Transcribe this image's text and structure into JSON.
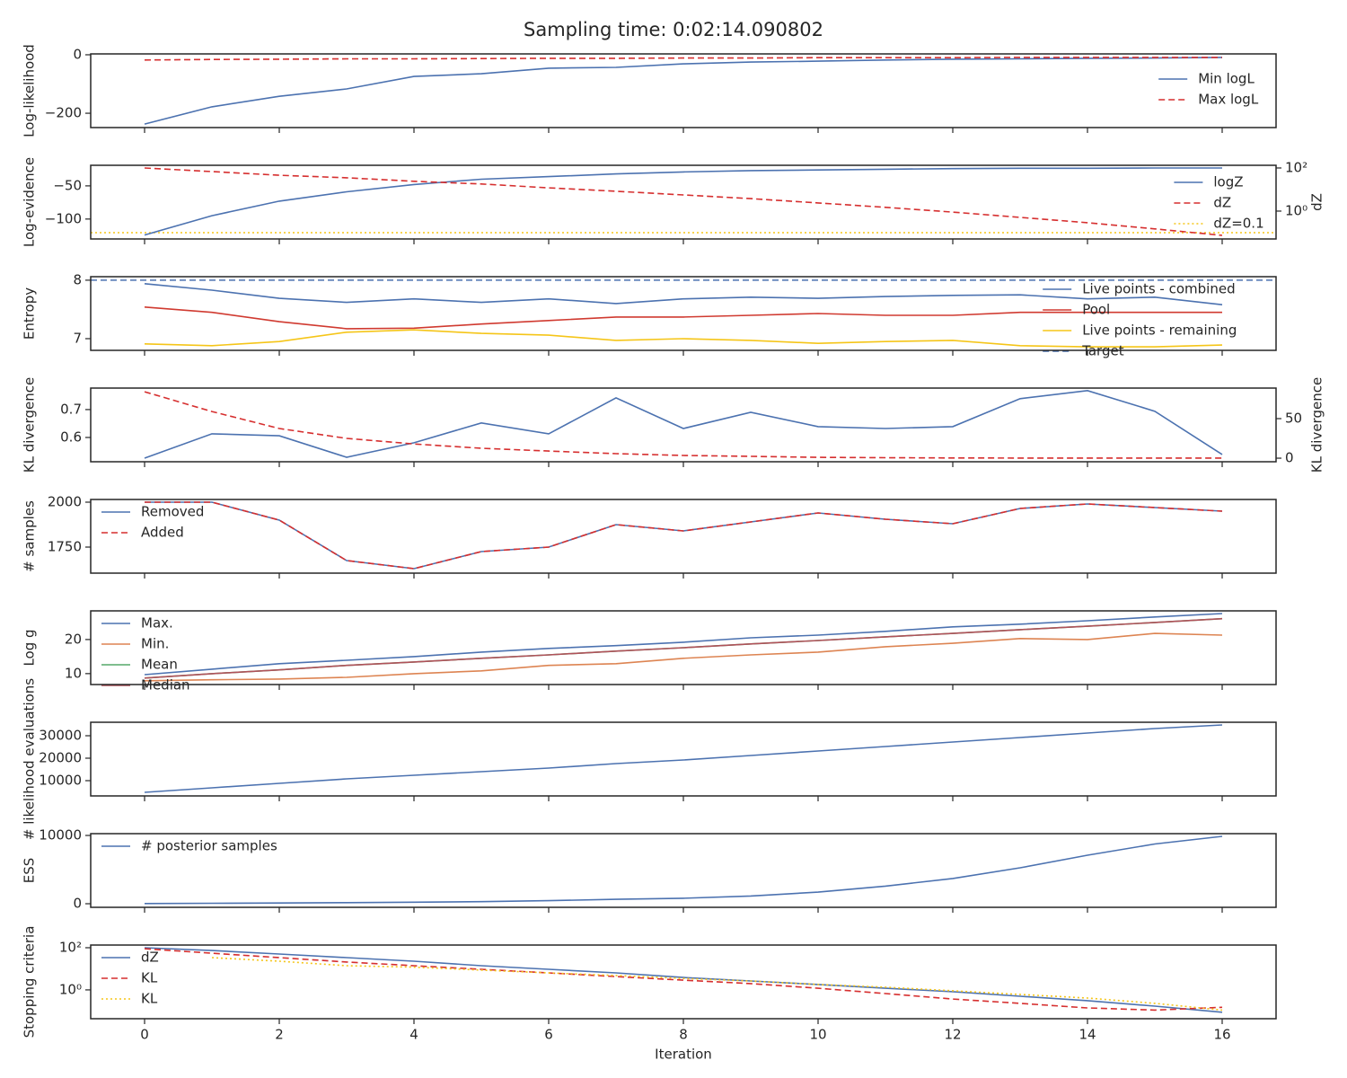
{
  "title": "Sampling time: 0:02:14.090802",
  "chart_data": [
    {
      "type": "line",
      "ylabel": "Log-likelihood",
      "x": [
        0,
        1,
        2,
        3,
        4,
        5,
        6,
        7,
        8,
        9,
        10,
        11,
        12,
        13,
        14,
        15,
        16
      ],
      "xlim": [
        -0.8,
        16.8
      ],
      "xticks": [
        0,
        2,
        4,
        6,
        8,
        10,
        12,
        14,
        16
      ],
      "ylim": [
        -249,
        3
      ],
      "yticks": [
        0,
        {
          "value": -200,
          "label": "−200"
        }
      ],
      "legend": "center right",
      "series": [
        {
          "name": "Min logL",
          "color": "#4c72b0",
          "style": "solid",
          "values": [
            -237,
            -178,
            -142,
            -117,
            -74,
            -65,
            -46,
            -43,
            -31,
            -25,
            -22,
            -18,
            -15,
            -14,
            -12,
            -11,
            -9
          ]
        },
        {
          "name": "Max logL",
          "color": "#d62f2f",
          "style": "dashed",
          "values": [
            -18,
            -16,
            -15,
            -14,
            -14,
            -13,
            -12,
            -12,
            -11,
            -11,
            -10,
            -10,
            -10,
            -9,
            -9,
            -9,
            -9
          ]
        }
      ]
    },
    {
      "type": "line",
      "ylabel": "Log-evidence",
      "y2label": "dZ",
      "x": [
        0,
        1,
        2,
        3,
        4,
        5,
        6,
        7,
        8,
        9,
        10,
        11,
        12,
        13,
        14,
        15,
        16
      ],
      "xlim": [
        -0.8,
        16.8
      ],
      "xticks": [
        0,
        2,
        4,
        6,
        8,
        10,
        12,
        14,
        16
      ],
      "ylim": [
        -130,
        -19
      ],
      "yticks": [
        {
          "value": -50,
          "label": "−50"
        },
        {
          "value": -100,
          "label": "−100"
        }
      ],
      "y2log": true,
      "y2lim": [
        0.051,
        133
      ],
      "y2ticks": [
        {
          "value": 100,
          "label": "10²"
        },
        {
          "value": 1,
          "label": "10⁰"
        }
      ],
      "legend": "lower right",
      "series": [
        {
          "name": "logZ",
          "color": "#4c72b0",
          "style": "solid",
          "values": [
            -124,
            -95,
            -73,
            -59,
            -48,
            -40,
            -36,
            -32,
            -29,
            -27,
            -26,
            -25,
            -24,
            -23.5,
            -23.5,
            -23,
            -23
          ]
        },
        {
          "name": "dZ",
          "color": "#d62f2f",
          "style": "dashed",
          "axis": "y2",
          "values": [
            100,
            68,
            46,
            35,
            24,
            18,
            12,
            8.3,
            5.6,
            3.8,
            2.4,
            1.5,
            0.9,
            0.51,
            0.29,
            0.15,
            0.075
          ]
        }
      ],
      "hlines": [
        {
          "name": "dZ=0.1",
          "value": 0.1,
          "axis": "y2",
          "color": "#f5c518",
          "style": "dotted"
        }
      ]
    },
    {
      "type": "line",
      "ylabel": "Entropy",
      "x": [
        0,
        1,
        2,
        3,
        4,
        5,
        6,
        7,
        8,
        9,
        10,
        11,
        12,
        13,
        14,
        15,
        16
      ],
      "xlim": [
        -0.8,
        16.8
      ],
      "xticks": [
        0,
        2,
        4,
        6,
        8,
        10,
        12,
        14,
        16
      ],
      "ylim": [
        6.8,
        8.06
      ],
      "yticks": [
        8,
        7
      ],
      "legend": "upper right",
      "series": [
        {
          "name": "Live points - combined",
          "color": "#4c72b0",
          "style": "solid",
          "values": [
            7.94,
            7.83,
            7.69,
            7.62,
            7.68,
            7.62,
            7.68,
            7.6,
            7.68,
            7.71,
            7.69,
            7.72,
            7.74,
            7.75,
            7.68,
            7.71,
            7.58
          ]
        },
        {
          "name": "Pool",
          "color": "#d03a30",
          "style": "solid",
          "values": [
            7.54,
            7.45,
            7.29,
            7.17,
            7.18,
            7.25,
            7.31,
            7.37,
            7.37,
            7.4,
            7.43,
            7.4,
            7.4,
            7.45,
            7.45,
            7.45,
            7.45
          ]
        },
        {
          "name": "Live points - remaining",
          "color": "#f5c518",
          "style": "solid",
          "values": [
            6.91,
            6.88,
            6.95,
            7.11,
            7.15,
            7.09,
            7.06,
            6.97,
            7,
            6.97,
            6.92,
            6.95,
            6.97,
            6.88,
            6.86,
            6.86,
            6.89
          ]
        }
      ],
      "hlines": [
        {
          "name": "Target",
          "value": 8,
          "color": "#4c72b0",
          "style": "dashed"
        }
      ]
    },
    {
      "type": "line",
      "ylabel": "KL divergence",
      "y2label": "KL divergence",
      "x": [
        0,
        1,
        2,
        3,
        4,
        5,
        6,
        7,
        8,
        9,
        10,
        11,
        12,
        13,
        14,
        15,
        16
      ],
      "xlim": [
        -0.8,
        16.8
      ],
      "xticks": [
        0,
        2,
        4,
        6,
        8,
        10,
        12,
        14,
        16
      ],
      "ylim": [
        0.513,
        0.777
      ],
      "yticks": [
        0.7,
        0.6
      ],
      "y2lim": [
        -4.5,
        88.6
      ],
      "y2ticks": [
        50,
        0
      ],
      "series": [
        {
          "color": "#4c72b0",
          "style": "solid",
          "values": [
            0.526,
            0.613,
            0.606,
            0.529,
            0.581,
            0.652,
            0.613,
            0.742,
            0.632,
            0.69,
            0.639,
            0.632,
            0.639,
            0.739,
            0.768,
            0.694,
            0.539
          ]
        },
        {
          "color": "#d62f2f",
          "style": "dashed",
          "axis": "y2",
          "values": [
            84,
            59,
            37.5,
            25,
            18,
            12.5,
            9,
            5.7,
            3.4,
            2.3,
            1.1,
            0.6,
            0.3,
            0.2,
            0.1,
            0.1,
            0.1
          ]
        }
      ]
    },
    {
      "type": "line",
      "ylabel": "# samples",
      "x": [
        0,
        1,
        2,
        3,
        4,
        5,
        6,
        7,
        8,
        9,
        10,
        11,
        12,
        13,
        14,
        15,
        16
      ],
      "xlim": [
        -0.8,
        16.8
      ],
      "xticks": [
        0,
        2,
        4,
        6,
        8,
        10,
        12,
        14,
        16
      ],
      "ylim": [
        1605,
        2015
      ],
      "yticks": [
        2000,
        1750
      ],
      "legend": "upper left",
      "series": [
        {
          "name": "Removed",
          "color": "#4c72b0",
          "style": "solid",
          "values": [
            2000,
            2000,
            1900,
            1675,
            1630,
            1725,
            1750,
            1875,
            1840,
            1890,
            1940,
            1905,
            1880,
            1965,
            1990,
            1970,
            1950
          ]
        },
        {
          "name": "Added",
          "color": "#d62f2f",
          "style": "dashed",
          "values": [
            2000,
            2000,
            1900,
            1675,
            1630,
            1725,
            1750,
            1875,
            1840,
            1890,
            1940,
            1905,
            1880,
            1965,
            1990,
            1970,
            1950
          ]
        }
      ]
    },
    {
      "type": "line",
      "ylabel": "Log g",
      "x": [
        0,
        1,
        2,
        3,
        4,
        5,
        6,
        7,
        8,
        9,
        10,
        11,
        12,
        13,
        14,
        15,
        16
      ],
      "xlim": [
        -0.8,
        16.8
      ],
      "xticks": [
        0,
        2,
        4,
        6,
        8,
        10,
        12,
        14,
        16
      ],
      "ylim": [
        6.8,
        28.4
      ],
      "yticks": [
        20,
        10
      ],
      "legend": "upper left",
      "series": [
        {
          "name": "Max.",
          "color": "#4c72b0",
          "style": "solid",
          "values": [
            9.7,
            11.3,
            12.9,
            13.9,
            15,
            16.3,
            17.4,
            18.2,
            19.2,
            20.5,
            21.3,
            22.4,
            23.7,
            24.5,
            25.5,
            26.6,
            27.6
          ]
        },
        {
          "name": "Min.",
          "color": "#dd8452",
          "style": "solid",
          "values": [
            7.9,
            8.2,
            8.4,
            8.9,
            10,
            10.8,
            12.4,
            12.9,
            14.5,
            15.5,
            16.3,
            17.9,
            18.9,
            20.3,
            20,
            21.8,
            21.3
          ]
        },
        {
          "name": "Mean",
          "color": "#55a868",
          "style": "solid",
          "values": [
            8.7,
            10,
            11.1,
            12.4,
            13.4,
            14.5,
            15.5,
            16.6,
            17.6,
            18.7,
            19.7,
            20.8,
            21.8,
            22.9,
            23.9,
            25,
            26.1
          ]
        },
        {
          "name": "Median",
          "color": "#b0525a",
          "style": "solid",
          "values": [
            8.7,
            10,
            11.1,
            12.4,
            13.4,
            14.5,
            15.5,
            16.6,
            17.6,
            18.7,
            19.7,
            20.8,
            21.8,
            22.9,
            23.9,
            25,
            26.1
          ]
        }
      ]
    },
    {
      "type": "line",
      "ylabel": "# likelihood evaluations",
      "x": [
        0,
        1,
        2,
        3,
        4,
        5,
        6,
        7,
        8,
        9,
        10,
        11,
        12,
        13,
        14,
        15,
        16
      ],
      "xlim": [
        -0.8,
        16.8
      ],
      "xticks": [
        0,
        2,
        4,
        6,
        8,
        10,
        12,
        14,
        16
      ],
      "ylim": [
        3200,
        36000
      ],
      "yticks": [
        30000,
        20000,
        10000
      ],
      "series": [
        {
          "color": "#4c72b0",
          "style": "solid",
          "values": [
            4800,
            6800,
            8800,
            10800,
            12400,
            14000,
            15600,
            17600,
            19200,
            21200,
            23200,
            25200,
            27200,
            29200,
            31200,
            33200,
            34800
          ]
        }
      ]
    },
    {
      "type": "line",
      "ylabel": "ESS",
      "x": [
        0,
        1,
        2,
        3,
        4,
        5,
        6,
        7,
        8,
        9,
        10,
        11,
        12,
        13,
        14,
        15,
        16
      ],
      "xlim": [
        -0.8,
        16.8
      ],
      "xticks": [
        0,
        2,
        4,
        6,
        8,
        10,
        12,
        14,
        16
      ],
      "ylim": [
        -526,
        10263
      ],
      "yticks": [
        10000,
        0
      ],
      "legend": "upper left",
      "series": [
        {
          "name": "# posterior samples",
          "color": "#4c72b0",
          "style": "solid",
          "values": [
            30,
            60,
            100,
            160,
            230,
            300,
            450,
            640,
            800,
            1130,
            1700,
            2580,
            3700,
            5260,
            7110,
            8750,
            9870
          ]
        }
      ]
    },
    {
      "type": "line",
      "ylabel": "Stopping criteria",
      "xlabel": "Iteration",
      "x": [
        0,
        1,
        2,
        3,
        4,
        5,
        6,
        7,
        8,
        9,
        10,
        11,
        12,
        13,
        14,
        15,
        16
      ],
      "xlim": [
        -0.8,
        16.8
      ],
      "xticks": [
        0,
        2,
        4,
        6,
        8,
        10,
        12,
        14,
        16
      ],
      "ylog": true,
      "ylim": [
        0.043,
        134
      ],
      "yticks": [
        {
          "value": 100,
          "label": "10²"
        },
        {
          "value": 1,
          "label": "10⁰"
        }
      ],
      "legend": "upper left",
      "series": [
        {
          "name": "dZ",
          "color": "#4c72b0",
          "style": "solid",
          "values": [
            100,
            74,
            50,
            34,
            23,
            14,
            9.5,
            6.4,
            3.9,
            2.66,
            1.8,
            1.2,
            0.82,
            0.5,
            0.31,
            0.17,
            0.087
          ]
        },
        {
          "name": "KL",
          "color": "#d62f2f",
          "style": "dashed",
          "values": [
            90,
            55,
            34,
            21,
            14,
            9.5,
            6.4,
            4.3,
            2.9,
            2,
            1.2,
            0.67,
            0.37,
            0.23,
            0.14,
            0.11,
            0.15
          ]
        },
        {
          "name": "KL",
          "color": "#f5c518",
          "style": "dotted",
          "values": [
            null,
            34,
            23,
            14,
            12,
            8.7,
            6.4,
            4.8,
            3.5,
            2.66,
            1.8,
            1.35,
            0.91,
            0.61,
            0.41,
            0.23,
            0.11
          ]
        }
      ]
    }
  ]
}
